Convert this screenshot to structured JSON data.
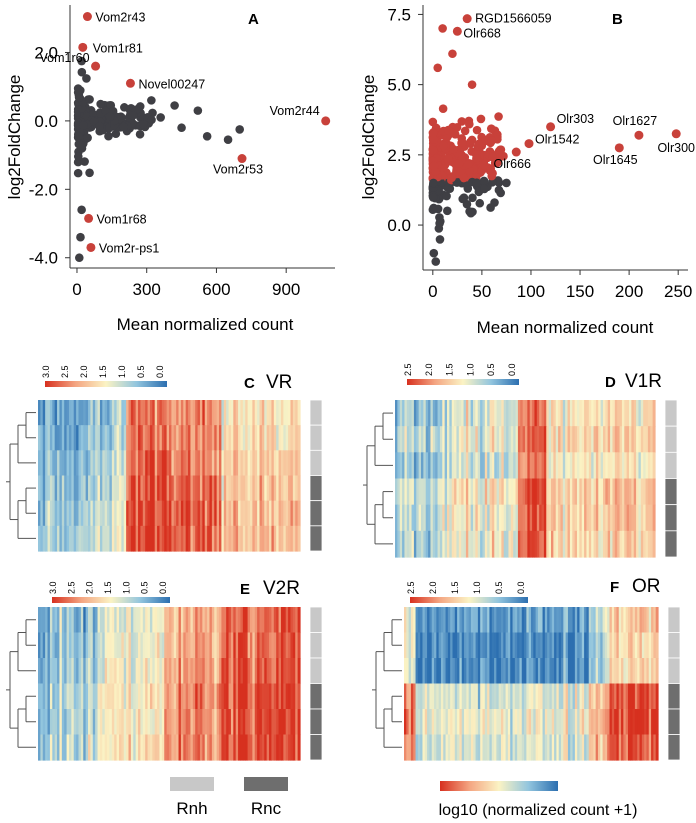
{
  "panel_letters": {
    "A": "A",
    "B": "B",
    "C": "C",
    "D": "D",
    "E": "E",
    "F": "F"
  },
  "shared": {
    "xlabel": "Mean normalized count",
    "ylabel": "log2FoldChange",
    "legend_rnh": "Rnh",
    "legend_rnc": "Rnc",
    "legend_color_label": "log10 (normalized count +1)"
  },
  "colors": {
    "point_gray": "#3f3f44",
    "point_red": "#c8413a",
    "rnh": "#c8c8c8",
    "rnc": "#6e6e6e"
  },
  "chart_data": [
    {
      "id": "A",
      "type": "scatter",
      "title": "A",
      "xlabel": "Mean normalized count",
      "ylabel": "log2FoldChange",
      "xlim": [
        -30,
        1110
      ],
      "ylim": [
        -4.3,
        3.3
      ],
      "xticks": [
        0,
        300,
        600,
        900
      ],
      "xticklabels": [
        "0",
        "300",
        "600",
        "900"
      ],
      "yticks": [
        -4,
        -2,
        0,
        2
      ],
      "yticklabels": [
        "-4.0",
        "-2.0",
        "0.0",
        "2.0"
      ],
      "highlighted": [
        {
          "label": "Vom2r43",
          "x": 45,
          "y": 3.05
        },
        {
          "label": "Vom1r81",
          "x": 25,
          "y": 2.15
        },
        {
          "label": "Vom1r60",
          "x": 80,
          "y": 1.6
        },
        {
          "label": "Novel00247",
          "x": 230,
          "y": 1.1
        },
        {
          "label": "Vom2r44",
          "x": 1070,
          "y": 0.0
        },
        {
          "label": "Vom2r53",
          "x": 710,
          "y": -1.1
        },
        {
          "label": "Vom1r68",
          "x": 50,
          "y": -2.85
        },
        {
          "label": "Vom2r-ps1",
          "x": 60,
          "y": -3.7
        }
      ]
    },
    {
      "id": "B",
      "type": "scatter",
      "title": "B",
      "xlabel": "Mean normalized count",
      "ylabel": "log2FoldChange",
      "xlim": [
        -10,
        260
      ],
      "ylim": [
        -1.6,
        7.8
      ],
      "xticks": [
        0,
        50,
        100,
        150,
        200,
        250
      ],
      "xticklabels": [
        "0",
        "50",
        "100",
        "150",
        "200",
        "250"
      ],
      "yticks": [
        0,
        2.5,
        5,
        7.5
      ],
      "yticklabels": [
        "0.0",
        "2.5",
        "5.0",
        "7.5"
      ],
      "highlighted": [
        {
          "label": "RGD1566059",
          "x": 35,
          "y": 7.35
        },
        {
          "label": "Olr668",
          "x": 25,
          "y": 6.9
        },
        {
          "label": "Olr303",
          "x": 120,
          "y": 3.5
        },
        {
          "label": "Olr1542",
          "x": 98,
          "y": 2.9
        },
        {
          "label": "Olr666",
          "x": 85,
          "y": 2.6
        },
        {
          "label": "Olr1627",
          "x": 210,
          "y": 3.2
        },
        {
          "label": "Olr1645",
          "x": 190,
          "y": 2.75
        },
        {
          "label": "Olr300",
          "x": 248,
          "y": 3.25
        }
      ]
    },
    {
      "id": "C",
      "type": "heatmap",
      "title": "VR",
      "colorbar_ticks": [
        "3.0",
        "2.5",
        "2.0",
        "1.5",
        "1.0",
        "0.5",
        "0.0"
      ],
      "samples": [
        "Rnh",
        "Rnh",
        "Rnh",
        "Rnc",
        "Rnc",
        "Rnc"
      ]
    },
    {
      "id": "D",
      "type": "heatmap",
      "title": "V1R",
      "colorbar_ticks": [
        "2.5",
        "2.0",
        "1.5",
        "1.0",
        "0.5",
        "0.0"
      ],
      "samples": [
        "Rnh",
        "Rnh",
        "Rnh",
        "Rnc",
        "Rnc",
        "Rnc"
      ]
    },
    {
      "id": "E",
      "type": "heatmap",
      "title": "V2R",
      "colorbar_ticks": [
        "3.0",
        "2.5",
        "2.0",
        "1.5",
        "1.0",
        "0.5",
        "0.0"
      ],
      "samples": [
        "Rnh",
        "Rnh",
        "Rnh",
        "Rnc",
        "Rnc",
        "Rnc"
      ]
    },
    {
      "id": "F",
      "type": "heatmap",
      "title": "OR",
      "colorbar_ticks": [
        "2.5",
        "2.0",
        "1.5",
        "1.0",
        "0.5",
        "0.0"
      ],
      "samples": [
        "Rnh",
        "Rnh",
        "Rnh",
        "Rnc",
        "Rnc",
        "Rnc"
      ]
    }
  ]
}
